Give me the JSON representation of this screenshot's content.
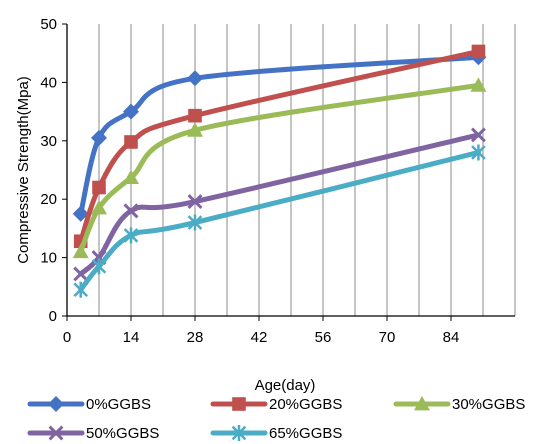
{
  "chart_data": {
    "type": "line",
    "title": "",
    "xlabel": "Age(day)",
    "ylabel": "Compressive Strength(Mpa)",
    "xlim": [
      0,
      98
    ],
    "ylim": [
      0,
      50
    ],
    "x_ticks": [
      "0",
      "14",
      "28",
      "42",
      "56",
      "70",
      "84"
    ],
    "y_ticks": [
      "0",
      "10",
      "20",
      "30",
      "40",
      "50"
    ],
    "grid": "vertical",
    "legend_position": "bottom",
    "x": [
      3,
      7,
      14,
      28,
      90
    ],
    "series": [
      {
        "name": "0%GGBS",
        "color": "#4472C4",
        "marker": "diamond",
        "values": [
          17.5,
          30.5,
          35,
          40.7,
          44.3
        ]
      },
      {
        "name": "20%GGBS",
        "color": "#C0504D",
        "marker": "square",
        "values": [
          12.8,
          22,
          29.8,
          34.3,
          45.3
        ]
      },
      {
        "name": "30%GGBS",
        "color": "#9BBB59",
        "marker": "triangle",
        "values": [
          11,
          18.5,
          23.7,
          31.8,
          39.5
        ]
      },
      {
        "name": "50%GGBS",
        "color": "#8064A2",
        "marker": "x",
        "values": [
          7.2,
          10,
          18,
          19.6,
          31
        ]
      },
      {
        "name": "65%GGBS",
        "color": "#4BACC6",
        "marker": "star",
        "values": [
          4.5,
          8.5,
          13.8,
          16,
          28
        ]
      }
    ]
  }
}
